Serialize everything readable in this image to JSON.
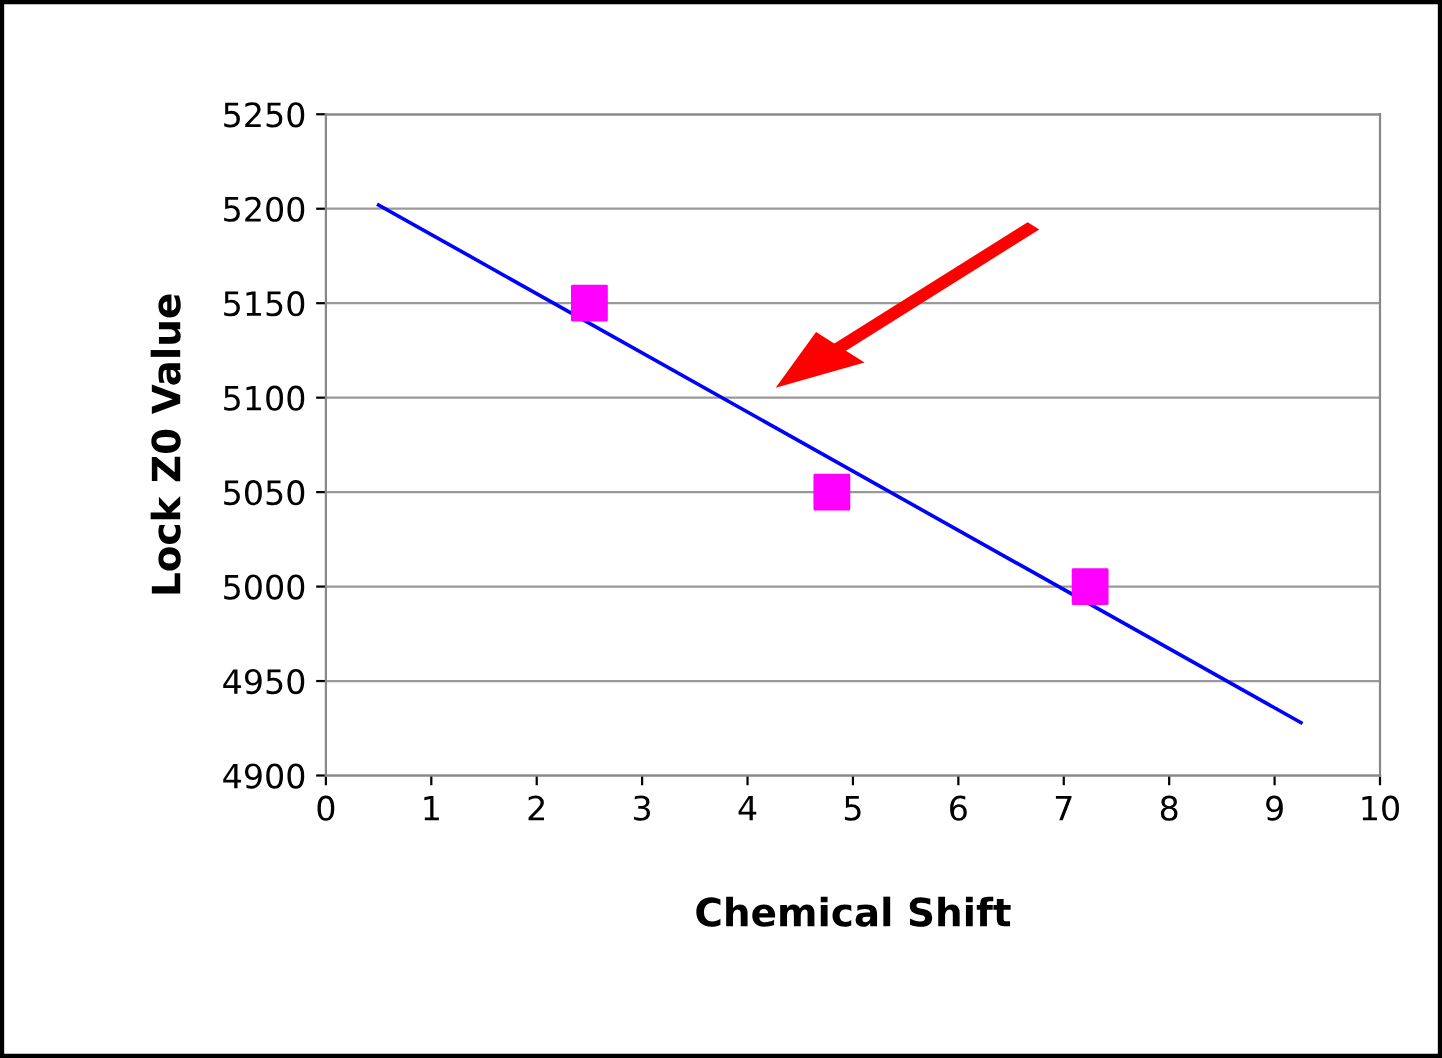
{
  "chart_data": {
    "type": "scatter",
    "xlabel": "Chemical Shift",
    "ylabel": "Lock Z0 Value",
    "xlim": [
      0,
      10
    ],
    "xticks": [
      0,
      1,
      2,
      3,
      4,
      5,
      6,
      7,
      8,
      9,
      10
    ],
    "ylim": [
      4900,
      5250
    ],
    "yticks": [
      4900,
      4950,
      5000,
      5050,
      5100,
      5150,
      5200,
      5250
    ],
    "grid": "y",
    "marker": "square",
    "series": [
      {
        "color": "#ff00ff",
        "x": [
          2.5,
          4.8,
          7.25
        ],
        "values": [
          5150,
          5050,
          5000
        ]
      },
      {
        "type": "line",
        "color": "#0000ff",
        "marker": "none",
        "x": [
          0.5,
          9.25
        ],
        "values": [
          5202,
          4928
        ]
      }
    ]
  }
}
